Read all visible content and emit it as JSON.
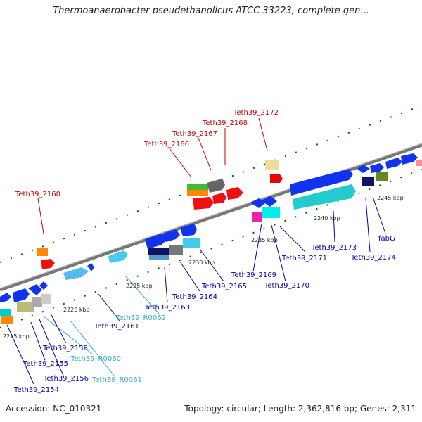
{
  "header": {
    "title": "Thermoanaerobacter pseudethanolicus ATCC 33223, complete gen..."
  },
  "footer": {
    "accession": "Accession: NC_010321",
    "summary": "Topology: circular; Length: 2,362,816 bp; Genes: 2,311"
  },
  "colors": {
    "red_label": "#cc0000",
    "blue_label": "#0000aa",
    "cyan_label": "#33aacc",
    "backbone": "#777777",
    "tick": "#006600"
  },
  "scale_labels": [
    {
      "text": "2215 kbp"
    },
    {
      "text": "2220 kbp"
    },
    {
      "text": "2225 kbp"
    },
    {
      "text": "2230 kbp"
    },
    {
      "text": "2235 kbp"
    },
    {
      "text": "2240 kbp"
    },
    {
      "text": "2245 kbp"
    }
  ],
  "gene_labels": [
    {
      "text": "Teth39_2172",
      "kind": "red"
    },
    {
      "text": "Teth39_2168",
      "kind": "red"
    },
    {
      "text": "Teth39_2167",
      "kind": "red"
    },
    {
      "text": "Teth39_2166",
      "kind": "red"
    },
    {
      "text": "Teth39_2160",
      "kind": "red"
    },
    {
      "text": "fabG",
      "kind": "blue"
    },
    {
      "text": "Teth39_2173",
      "kind": "blue"
    },
    {
      "text": "Teth39_2174",
      "kind": "blue"
    },
    {
      "text": "Teth39_2171",
      "kind": "blue"
    },
    {
      "text": "Teth39_2169",
      "kind": "blue"
    },
    {
      "text": "Teth39_2170",
      "kind": "blue"
    },
    {
      "text": "Teth39_2165",
      "kind": "blue"
    },
    {
      "text": "Teth39_2164",
      "kind": "blue"
    },
    {
      "text": "Teth39_2163",
      "kind": "blue"
    },
    {
      "text": "Teth39_R0062",
      "kind": "cyan"
    },
    {
      "text": "Teth39_2161",
      "kind": "blue"
    },
    {
      "text": "Teth39_2158",
      "kind": "blue"
    },
    {
      "text": "Teth39_R0060",
      "kind": "cyan"
    },
    {
      "text": "Teth39_2155",
      "kind": "blue"
    },
    {
      "text": "Teth39_2156",
      "kind": "blue"
    },
    {
      "text": "Teth39_R0061",
      "kind": "cyan"
    },
    {
      "text": "Teth39_2154",
      "kind": "blue"
    }
  ]
}
